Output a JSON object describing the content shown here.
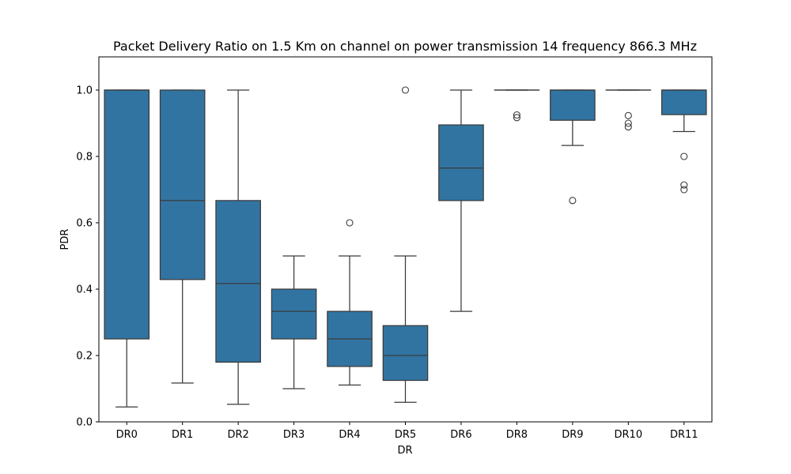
{
  "chart_data": {
    "type": "box",
    "title": "Packet Delivery Ratio on 1.5 Km on channel on power transmission 14 frequency 866.3 MHz",
    "xlabel": "DR",
    "ylabel": "PDR",
    "ylim": [
      0.0,
      1.1
    ],
    "yticks": [
      "0.0",
      "0.2",
      "0.4",
      "0.6",
      "0.8",
      "1.0"
    ],
    "grid": false,
    "color": "#3274a1",
    "edge_color": "#3a3a3a",
    "categories": [
      "DR0",
      "DR1",
      "DR2",
      "DR3",
      "DR4",
      "DR5",
      "DR6",
      "DR8",
      "DR9",
      "DR10",
      "DR11"
    ],
    "boxes": [
      {
        "label": "DR0",
        "whisker_low": 0.045,
        "q1": 0.25,
        "median": 1.0,
        "q3": 1.0,
        "whisker_high": 1.0,
        "outliers": []
      },
      {
        "label": "DR1",
        "whisker_low": 0.117,
        "q1": 0.429,
        "median": 0.667,
        "q3": 1.0,
        "whisker_high": 1.0,
        "outliers": []
      },
      {
        "label": "DR2",
        "whisker_low": 0.053,
        "q1": 0.18,
        "median": 0.417,
        "q3": 0.667,
        "whisker_high": 1.0,
        "outliers": []
      },
      {
        "label": "DR3",
        "whisker_low": 0.1,
        "q1": 0.25,
        "median": 0.333,
        "q3": 0.4,
        "whisker_high": 0.5,
        "outliers": []
      },
      {
        "label": "DR4",
        "whisker_low": 0.111,
        "q1": 0.167,
        "median": 0.25,
        "q3": 0.333,
        "whisker_high": 0.5,
        "outliers": [
          0.6
        ]
      },
      {
        "label": "DR5",
        "whisker_low": 0.059,
        "q1": 0.125,
        "median": 0.2,
        "q3": 0.29,
        "whisker_high": 0.5,
        "outliers": [
          1.0
        ]
      },
      {
        "label": "DR6",
        "whisker_low": 0.333,
        "q1": 0.667,
        "median": 0.765,
        "q3": 0.895,
        "whisker_high": 1.0,
        "outliers": []
      },
      {
        "label": "DR8",
        "whisker_low": 1.0,
        "q1": 1.0,
        "median": 1.0,
        "q3": 1.0,
        "whisker_high": 1.0,
        "outliers": [
          0.925,
          0.917
        ]
      },
      {
        "label": "DR9",
        "whisker_low": 0.833,
        "q1": 0.909,
        "median": 1.0,
        "q3": 1.0,
        "whisker_high": 1.0,
        "outliers": [
          0.667
        ]
      },
      {
        "label": "DR10",
        "whisker_low": 1.0,
        "q1": 1.0,
        "median": 1.0,
        "q3": 1.0,
        "whisker_high": 1.0,
        "outliers": [
          0.923,
          0.9,
          0.889
        ]
      },
      {
        "label": "DR11",
        "whisker_low": 0.875,
        "q1": 0.926,
        "median": 1.0,
        "q3": 1.0,
        "whisker_high": 1.0,
        "outliers": [
          0.8,
          0.714,
          0.7
        ]
      }
    ]
  }
}
